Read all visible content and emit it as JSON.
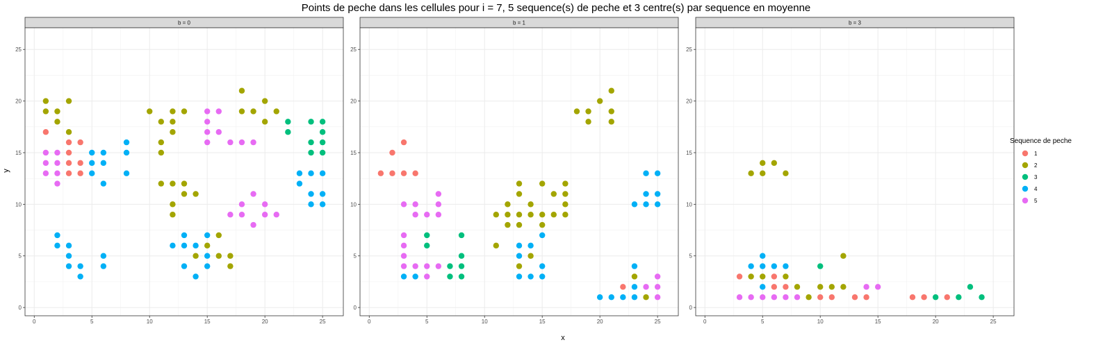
{
  "chart_data": {
    "type": "scatter",
    "title": "Points de peche dans les cellules pour i = 7, 5 sequence(s) de peche et 3 centre(s) par sequence en moyenne",
    "xlabel": "x",
    "ylabel": "y",
    "xlim": [
      -0.8,
      26.8
    ],
    "ylim": [
      -0.8,
      27.1
    ],
    "x_ticks": [
      0,
      5,
      10,
      15,
      20,
      25
    ],
    "y_ticks": [
      0,
      5,
      10,
      15,
      20,
      25
    ],
    "grid": true,
    "legend": {
      "title": "Sequence de peche",
      "placement": "right",
      "entries": [
        {
          "label": "1",
          "color": "#F8766D"
        },
        {
          "label": "2",
          "color": "#A3A500"
        },
        {
          "label": "3",
          "color": "#00BF7D"
        },
        {
          "label": "4",
          "color": "#00B0F6"
        },
        {
          "label": "5",
          "color": "#E76BF3"
        }
      ]
    },
    "facets": [
      {
        "label": "b = 0",
        "series": [
          {
            "name": "1",
            "points": [
              [
                1,
                17
              ],
              [
                3,
                16
              ],
              [
                4,
                16
              ],
              [
                3,
                15
              ],
              [
                3,
                14
              ],
              [
                4,
                14
              ],
              [
                3,
                13
              ],
              [
                4,
                13
              ]
            ]
          },
          {
            "name": "2",
            "points": [
              [
                1,
                20
              ],
              [
                3,
                20
              ],
              [
                1,
                19
              ],
              [
                2,
                19
              ],
              [
                2,
                18
              ],
              [
                3,
                17
              ],
              [
                10,
                19
              ],
              [
                12,
                19
              ],
              [
                13,
                19
              ],
              [
                11,
                18
              ],
              [
                12,
                18
              ],
              [
                12,
                17
              ],
              [
                11,
                16
              ],
              [
                11,
                15
              ],
              [
                11,
                12
              ],
              [
                12,
                12
              ],
              [
                13,
                12
              ],
              [
                13,
                11
              ],
              [
                14,
                11
              ],
              [
                12,
                10
              ],
              [
                12,
                9
              ],
              [
                18,
                21
              ],
              [
                18,
                19
              ],
              [
                19,
                19
              ],
              [
                20,
                20
              ],
              [
                21,
                19
              ],
              [
                20,
                18
              ],
              [
                14,
                5
              ],
              [
                15,
                6
              ],
              [
                16,
                7
              ],
              [
                17,
                5
              ],
              [
                16,
                5
              ],
              [
                17,
                4
              ]
            ]
          },
          {
            "name": "3",
            "points": [
              [
                22,
                18
              ],
              [
                22,
                17
              ],
              [
                24,
                18
              ],
              [
                25,
                18
              ],
              [
                25,
                17
              ],
              [
                24,
                16
              ],
              [
                25,
                16
              ],
              [
                24,
                15
              ],
              [
                25,
                15
              ]
            ]
          },
          {
            "name": "4",
            "points": [
              [
                5,
                15
              ],
              [
                6,
                15
              ],
              [
                5,
                14
              ],
              [
                6,
                14
              ],
              [
                5,
                13
              ],
              [
                6,
                12
              ],
              [
                8,
                16
              ],
              [
                8,
                15
              ],
              [
                8,
                13
              ],
              [
                2,
                7
              ],
              [
                2,
                6
              ],
              [
                3,
                6
              ],
              [
                3,
                5
              ],
              [
                3,
                4
              ],
              [
                4,
                4
              ],
              [
                4,
                3
              ],
              [
                6,
                5
              ],
              [
                6,
                4
              ],
              [
                12,
                6
              ],
              [
                13,
                7
              ],
              [
                13,
                6
              ],
              [
                14,
                6
              ],
              [
                13,
                4
              ],
              [
                14,
                3
              ],
              [
                15,
                7
              ],
              [
                15,
                5
              ],
              [
                15,
                4
              ],
              [
                23,
                13
              ],
              [
                24,
                13
              ],
              [
                25,
                13
              ],
              [
                23,
                12
              ],
              [
                24,
                11
              ],
              [
                25,
                11
              ],
              [
                24,
                10
              ],
              [
                25,
                10
              ]
            ]
          },
          {
            "name": "5",
            "points": [
              [
                1,
                15
              ],
              [
                2,
                15
              ],
              [
                1,
                14
              ],
              [
                2,
                14
              ],
              [
                1,
                13
              ],
              [
                2,
                13
              ],
              [
                2,
                12
              ],
              [
                15,
                19
              ],
              [
                16,
                19
              ],
              [
                15,
                18
              ],
              [
                15,
                17
              ],
              [
                16,
                17
              ],
              [
                15,
                16
              ],
              [
                17,
                16
              ],
              [
                18,
                16
              ],
              [
                19,
                16
              ],
              [
                19,
                11
              ],
              [
                17,
                9
              ],
              [
                18,
                10
              ],
              [
                20,
                10
              ],
              [
                18,
                9
              ],
              [
                19,
                8
              ],
              [
                20,
                9
              ],
              [
                21,
                9
              ]
            ]
          }
        ]
      },
      {
        "label": "b = 1",
        "series": [
          {
            "name": "1",
            "points": [
              [
                3,
                16
              ],
              [
                2,
                15
              ],
              [
                1,
                13
              ],
              [
                2,
                13
              ],
              [
                3,
                13
              ],
              [
                4,
                13
              ],
              [
                22,
                2
              ]
            ]
          },
          {
            "name": "2",
            "points": [
              [
                20,
                20
              ],
              [
                21,
                21
              ],
              [
                18,
                19
              ],
              [
                19,
                19
              ],
              [
                21,
                19
              ],
              [
                19,
                18
              ],
              [
                21,
                18
              ],
              [
                13,
                12
              ],
              [
                15,
                12
              ],
              [
                17,
                12
              ],
              [
                13,
                11
              ],
              [
                16,
                11
              ],
              [
                17,
                11
              ],
              [
                12,
                10
              ],
              [
                14,
                10
              ],
              [
                17,
                10
              ],
              [
                11,
                9
              ],
              [
                12,
                9
              ],
              [
                13,
                9
              ],
              [
                14,
                9
              ],
              [
                15,
                9
              ],
              [
                16,
                9
              ],
              [
                17,
                9
              ],
              [
                12,
                8
              ],
              [
                13,
                8
              ],
              [
                15,
                8
              ],
              [
                11,
                6
              ],
              [
                14,
                5
              ],
              [
                13,
                4
              ],
              [
                23,
                3
              ],
              [
                24,
                1
              ]
            ]
          },
          {
            "name": "3",
            "points": [
              [
                5,
                7
              ],
              [
                8,
                7
              ],
              [
                5,
                6
              ],
              [
                8,
                5
              ],
              [
                7,
                4
              ],
              [
                8,
                4
              ],
              [
                7,
                3
              ],
              [
                8,
                3
              ]
            ]
          },
          {
            "name": "4",
            "points": [
              [
                24,
                13
              ],
              [
                25,
                13
              ],
              [
                24,
                11
              ],
              [
                25,
                11
              ],
              [
                23,
                10
              ],
              [
                24,
                10
              ],
              [
                25,
                10
              ],
              [
                15,
                7
              ],
              [
                13,
                6
              ],
              [
                14,
                6
              ],
              [
                13,
                5
              ],
              [
                15,
                4
              ],
              [
                13,
                3
              ],
              [
                14,
                3
              ],
              [
                15,
                3
              ],
              [
                3,
                3
              ],
              [
                4,
                3
              ],
              [
                23,
                4
              ],
              [
                23,
                2
              ],
              [
                20,
                1
              ],
              [
                21,
                1
              ],
              [
                22,
                1
              ],
              [
                23,
                1
              ]
            ]
          },
          {
            "name": "5",
            "points": [
              [
                6,
                11
              ],
              [
                3,
                10
              ],
              [
                4,
                10
              ],
              [
                6,
                10
              ],
              [
                4,
                9
              ],
              [
                5,
                9
              ],
              [
                6,
                9
              ],
              [
                3,
                7
              ],
              [
                3,
                6
              ],
              [
                3,
                5
              ],
              [
                3,
                4
              ],
              [
                4,
                4
              ],
              [
                5,
                4
              ],
              [
                6,
                4
              ],
              [
                5,
                3
              ],
              [
                24,
                2
              ],
              [
                25,
                2
              ],
              [
                25,
                3
              ],
              [
                25,
                1
              ]
            ]
          }
        ]
      },
      {
        "label": "b = 3",
        "series": [
          {
            "name": "1",
            "points": [
              [
                3,
                3
              ],
              [
                6,
                3
              ],
              [
                6,
                2
              ],
              [
                7,
                2
              ],
              [
                10,
                1
              ],
              [
                11,
                1
              ],
              [
                13,
                1
              ],
              [
                14,
                1
              ],
              [
                18,
                1
              ],
              [
                19,
                1
              ],
              [
                21,
                1
              ]
            ]
          },
          {
            "name": "2",
            "points": [
              [
                4,
                13
              ],
              [
                5,
                14
              ],
              [
                6,
                14
              ],
              [
                5,
                13
              ],
              [
                7,
                13
              ],
              [
                4,
                3
              ],
              [
                5,
                3
              ],
              [
                7,
                3
              ],
              [
                12,
                5
              ],
              [
                8,
                2
              ],
              [
                10,
                2
              ],
              [
                11,
                2
              ],
              [
                12,
                2
              ],
              [
                9,
                1
              ]
            ]
          },
          {
            "name": "3",
            "points": [
              [
                10,
                4
              ],
              [
                23,
                2
              ],
              [
                20,
                1
              ],
              [
                22,
                1
              ],
              [
                24,
                1
              ]
            ]
          },
          {
            "name": "4",
            "points": [
              [
                5,
                5
              ],
              [
                4,
                4
              ],
              [
                5,
                4
              ],
              [
                6,
                4
              ],
              [
                7,
                4
              ],
              [
                5,
                2
              ]
            ]
          },
          {
            "name": "5",
            "points": [
              [
                3,
                1
              ],
              [
                4,
                1
              ],
              [
                5,
                1
              ],
              [
                6,
                1
              ],
              [
                7,
                1
              ],
              [
                8,
                1
              ],
              [
                14,
                2
              ],
              [
                15,
                2
              ]
            ]
          }
        ]
      }
    ]
  }
}
